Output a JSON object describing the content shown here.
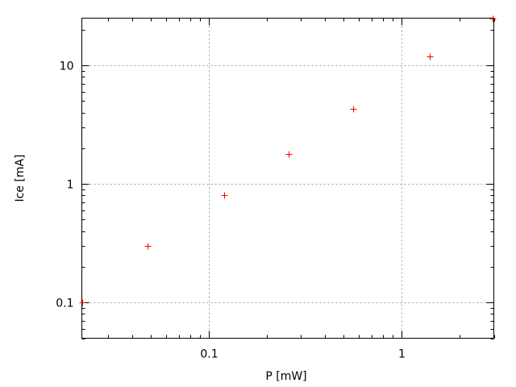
{
  "chart_data": {
    "type": "scatter",
    "title": "",
    "xlabel": "P [mW]",
    "ylabel": "Ice [mA]",
    "x_scale": "log",
    "y_scale": "log",
    "xlim": [
      0.022,
      3.0
    ],
    "ylim": [
      0.05,
      25
    ],
    "x_ticks": [
      {
        "value": 0.1,
        "label": "0.1"
      },
      {
        "value": 1,
        "label": "1"
      }
    ],
    "y_ticks": [
      {
        "value": 0.1,
        "label": "0.1"
      },
      {
        "value": 1,
        "label": "1"
      },
      {
        "value": 10,
        "label": "10"
      }
    ],
    "grid": true,
    "marker": "plus",
    "color": "#ff0000",
    "points": [
      {
        "x": 0.022,
        "y": 0.1
      },
      {
        "x": 0.048,
        "y": 0.3
      },
      {
        "x": 0.12,
        "y": 0.8
      },
      {
        "x": 0.26,
        "y": 1.8
      },
      {
        "x": 0.56,
        "y": 4.3
      },
      {
        "x": 1.4,
        "y": 11.9
      },
      {
        "x": 2.95,
        "y": 24.8
      }
    ]
  }
}
